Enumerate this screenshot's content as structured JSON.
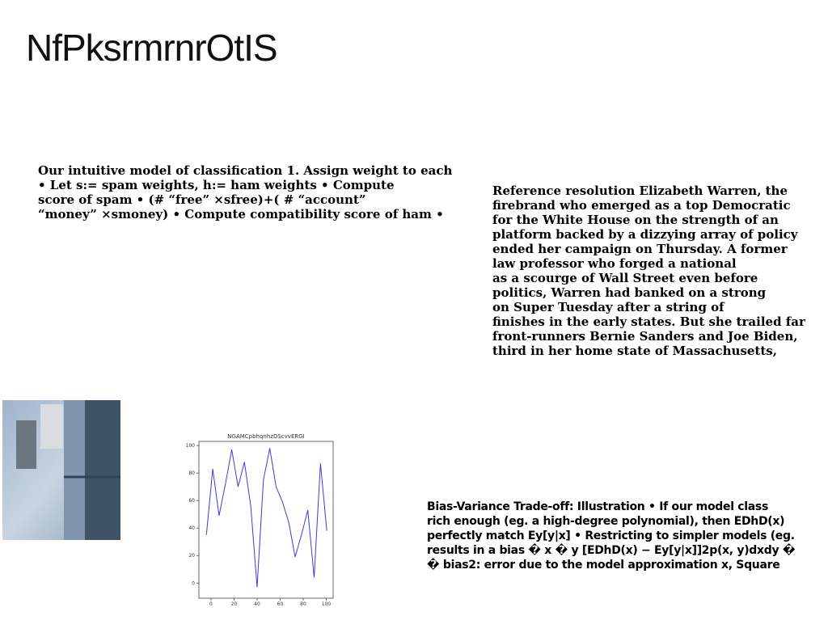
{
  "title": "NfPksrmrnrOtIS",
  "text_left": [
    "Our intuitive model of classification 1. Assign weight to each",
    "• Let s:= spam weights, h:= ham weights • Compute",
    "score of spam • (# “free” ×sfree)+( # “account”",
    "“money” ×smoney) • Compute compatibility score of ham •"
  ],
  "text_right": [
    "Reference resolution Elizabeth Warren, the",
    "firebrand who emerged as a top Democratic",
    "for the White House on the strength of an",
    "platform backed by a dizzying array of policy",
    "ended her campaign on Thursday. A former",
    "law professor who forged a national",
    "as a scourge of Wall Street even before",
    "politics, Warren had banked on a strong",
    "on Super Tuesday after a string of",
    "finishes in the early states. But she trailed far",
    "front-runners Bernie Sanders and Joe Biden,",
    "third in her home state of Massachusetts,"
  ],
  "text_bottom": [
    "Bias-Variance Trade-off: Illustration • If our model class",
    "rich enough (eg. a high-degree polynomial), then EDhD(x)",
    "perfectly match Ey[y|x] • Restricting to simpler models (eg.",
    "results in a bias � x � y [EDhD(x) − Ey[y|x]]2p(x, y)dxdy �",
    "� bias2: error due to the model approximation x, Square"
  ],
  "chart_data": {
    "type": "line",
    "title": "NGAMCpbhqnhzDScvvERGI",
    "x": [
      -4,
      1.5,
      7,
      12.5,
      18,
      23.5,
      29,
      34.5,
      40,
      45.5,
      51,
      56.5,
      62,
      67.5,
      73,
      78.5,
      84,
      89.5,
      95,
      100.5
    ],
    "series": [
      {
        "color": "#3b3bd9",
        "values": [
          35,
          83,
          49,
          72,
          97,
          70,
          88,
          56,
          -3,
          75,
          98,
          70,
          59,
          44,
          19,
          35,
          53,
          4,
          87,
          38
        ]
      }
    ],
    "xlim": [
      -10.5,
      106
    ],
    "ylim": [
      -11,
      103
    ],
    "xticks": [
      0,
      20,
      40,
      60,
      80,
      100
    ],
    "yticks": [
      0,
      20,
      40,
      60,
      80,
      100
    ]
  }
}
